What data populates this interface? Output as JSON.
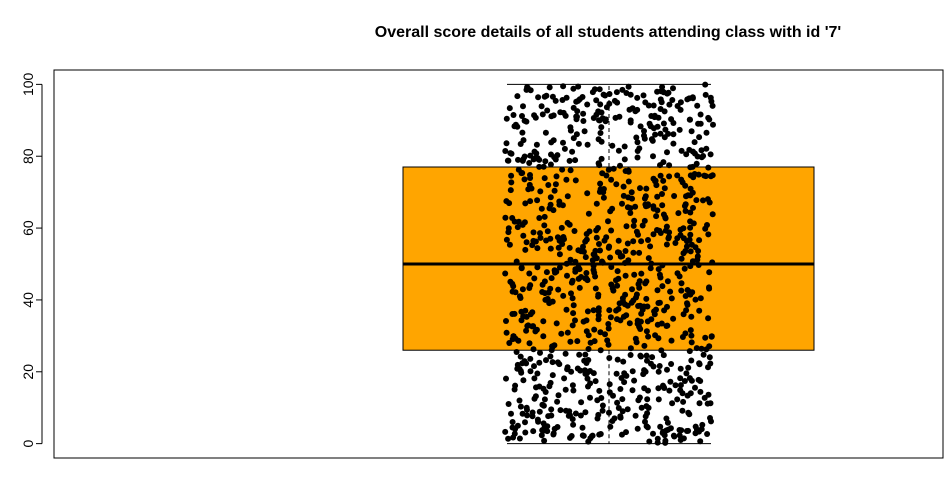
{
  "chart_data": {
    "type": "boxplot",
    "title": "Overall score details of all students attending class with id '7'",
    "xlabel": "",
    "ylabel": "",
    "ylim": [
      -4,
      104
    ],
    "yticks": [
      0,
      20,
      40,
      60,
      80,
      100
    ],
    "grid": false,
    "legend": "none",
    "box": {
      "min": 0,
      "q1": 26,
      "median": 50,
      "q3": 77,
      "max": 100,
      "fill_color": "#FFA500"
    },
    "points": {
      "count": 1000,
      "range": [
        0,
        100
      ],
      "distribution": "uniform jitter",
      "color": "#000000"
    }
  }
}
